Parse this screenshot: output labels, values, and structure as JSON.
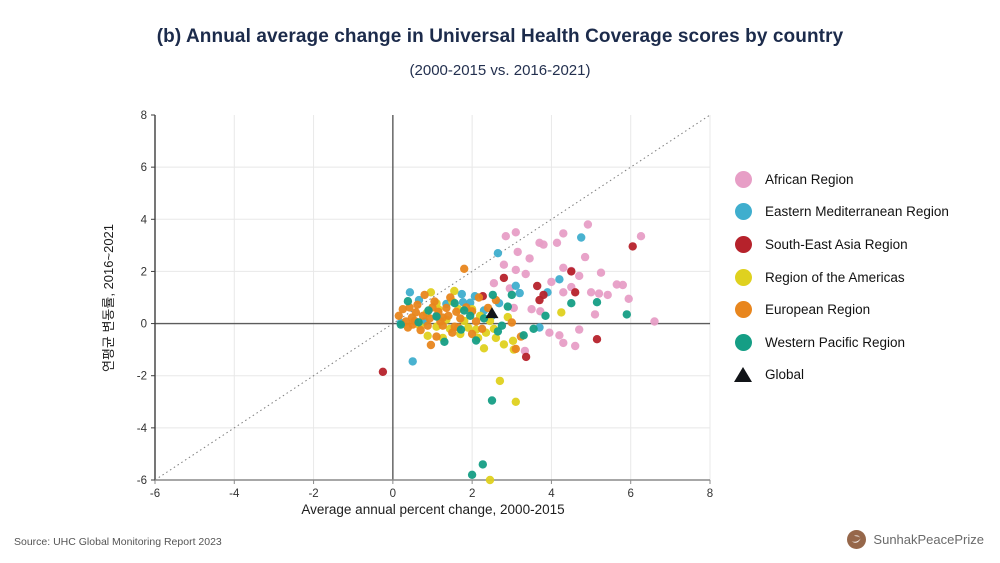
{
  "header": {
    "title": "(b) Annual average change in Universal Health Coverage scores by country",
    "subtitle": "(2000-2015 vs. 2016-2021)"
  },
  "footer": {
    "source": "Source: UHC Global Monitoring Report 2023",
    "brand": "SunhakPeacePrize",
    "brand_color": "#96674a"
  },
  "chart_data": {
    "type": "scatter",
    "title": "Annual average change in UHC scores by country",
    "xlabel": "Average annual percent change, 2000-2015",
    "ylabel": "연평균 변동률, 2016~2021",
    "xlim": [
      -6,
      8
    ],
    "ylim": [
      -6,
      8
    ],
    "ticks": [
      -6,
      -4,
      -2,
      0,
      2,
      4,
      6,
      8
    ],
    "grid": true,
    "identity_line": true,
    "legend_position": "right",
    "series": [
      {
        "name": "African Region",
        "color": "#e79ec6",
        "points": [
          [
            2.85,
            3.35
          ],
          [
            3.1,
            3.5
          ],
          [
            3.7,
            3.1
          ],
          [
            3.8,
            3.03
          ],
          [
            4.14,
            3.1
          ],
          [
            4.3,
            3.46
          ],
          [
            4.92,
            3.8
          ],
          [
            6.26,
            3.35
          ],
          [
            3.15,
            2.75
          ],
          [
            3.45,
            2.5
          ],
          [
            4.85,
            2.55
          ],
          [
            2.8,
            2.26
          ],
          [
            3.1,
            2.06
          ],
          [
            4.3,
            2.14
          ],
          [
            4.5,
            2.02
          ],
          [
            5.25,
            1.95
          ],
          [
            3.35,
            1.9
          ],
          [
            4.7,
            1.83
          ],
          [
            4.0,
            1.6
          ],
          [
            5.65,
            1.5
          ],
          [
            5.8,
            1.48
          ],
          [
            4.5,
            1.4
          ],
          [
            2.95,
            1.35
          ],
          [
            4.3,
            1.2
          ],
          [
            5.0,
            1.2
          ],
          [
            5.2,
            1.15
          ],
          [
            5.42,
            1.1
          ],
          [
            5.95,
            0.95
          ],
          [
            3.05,
            0.6
          ],
          [
            3.5,
            0.55
          ],
          [
            3.72,
            0.47
          ],
          [
            5.1,
            0.35
          ],
          [
            6.6,
            0.08
          ],
          [
            3.95,
            -0.35
          ],
          [
            4.2,
            -0.45
          ],
          [
            4.7,
            -0.23
          ],
          [
            4.3,
            -0.74
          ],
          [
            4.6,
            -0.86
          ],
          [
            3.33,
            -1.05
          ],
          [
            2.55,
            1.55
          ]
        ]
      },
      {
        "name": "Eastern Mediterranean Region",
        "color": "#3faece",
        "points": [
          [
            2.65,
            2.7
          ],
          [
            4.75,
            3.3
          ],
          [
            3.1,
            1.45
          ],
          [
            3.2,
            1.17
          ],
          [
            3.9,
            1.2
          ],
          [
            4.2,
            1.7
          ],
          [
            1.74,
            1.13
          ],
          [
            1.77,
            0.82
          ],
          [
            0.43,
            1.2
          ],
          [
            0.66,
            0.9
          ],
          [
            1.35,
            0.75
          ],
          [
            1.95,
            0.8
          ],
          [
            2.68,
            0.78
          ],
          [
            2.07,
            1.05
          ],
          [
            0.8,
            0.08
          ],
          [
            0.2,
            0.03
          ],
          [
            3.7,
            -0.15
          ],
          [
            0.5,
            -1.45
          ],
          [
            2.3,
            0.5
          ],
          [
            1.1,
            0.3
          ],
          [
            2.5,
            0.3
          ]
        ]
      },
      {
        "name": "South-East Asia Region",
        "color": "#b6222b",
        "points": [
          [
            2.8,
            1.75
          ],
          [
            2.27,
            1.05
          ],
          [
            3.64,
            1.44
          ],
          [
            3.8,
            1.1
          ],
          [
            4.5,
            2.0
          ],
          [
            6.05,
            2.96
          ],
          [
            4.6,
            1.2
          ],
          [
            3.7,
            0.9
          ],
          [
            5.15,
            -0.6
          ],
          [
            3.36,
            -1.28
          ],
          [
            -0.25,
            -1.85
          ]
        ]
      },
      {
        "name": "Region of the Americas",
        "color": "#dfd11f",
        "points": [
          [
            0.96,
            1.2
          ],
          [
            1.55,
            1.25
          ],
          [
            1.1,
            0.78
          ],
          [
            1.5,
            0.85
          ],
          [
            0.85,
            0.4
          ],
          [
            1.15,
            0.55
          ],
          [
            1.65,
            0.55
          ],
          [
            2.0,
            0.55
          ],
          [
            2.2,
            0.3
          ],
          [
            2.9,
            0.25
          ],
          [
            1.35,
            0.15
          ],
          [
            1.8,
            0.1
          ],
          [
            2.45,
            0.1
          ],
          [
            0.68,
            -0.08
          ],
          [
            1.1,
            -0.12
          ],
          [
            1.44,
            -0.2
          ],
          [
            1.9,
            -0.16
          ],
          [
            2.1,
            -0.23
          ],
          [
            2.55,
            -0.2
          ],
          [
            2.35,
            -0.35
          ],
          [
            0.88,
            -0.47
          ],
          [
            1.26,
            -0.55
          ],
          [
            1.7,
            -0.4
          ],
          [
            2.15,
            -0.55
          ],
          [
            2.6,
            -0.55
          ],
          [
            3.03,
            -0.66
          ],
          [
            2.8,
            -0.8
          ],
          [
            2.3,
            -0.95
          ],
          [
            3.05,
            -1.0
          ],
          [
            4.25,
            0.43
          ],
          [
            2.7,
            -2.2
          ],
          [
            3.1,
            -3.0
          ],
          [
            2.45,
            -6.0
          ]
        ]
      },
      {
        "name": "European Region",
        "color": "#e8861e",
        "points": [
          [
            1.8,
            2.1
          ],
          [
            2.17,
            1.0
          ],
          [
            0.8,
            1.1
          ],
          [
            1.05,
            0.85
          ],
          [
            1.45,
            1.0
          ],
          [
            0.25,
            0.55
          ],
          [
            0.42,
            0.62
          ],
          [
            0.62,
            0.72
          ],
          [
            1.0,
            0.62
          ],
          [
            1.15,
            0.45
          ],
          [
            1.35,
            0.6
          ],
          [
            1.85,
            0.62
          ],
          [
            2.4,
            0.6
          ],
          [
            2.6,
            0.9
          ],
          [
            0.15,
            0.3
          ],
          [
            0.33,
            0.08
          ],
          [
            0.48,
            0.23
          ],
          [
            0.58,
            0.43
          ],
          [
            0.76,
            0.3
          ],
          [
            0.93,
            0.2
          ],
          [
            1.26,
            0.23
          ],
          [
            1.4,
            0.3
          ],
          [
            1.6,
            0.45
          ],
          [
            1.7,
            0.2
          ],
          [
            2.0,
            0.47
          ],
          [
            2.1,
            0.08
          ],
          [
            0.55,
            0.1
          ],
          [
            1.2,
            0.08
          ],
          [
            0.5,
            -0.04
          ],
          [
            0.88,
            -0.08
          ],
          [
            1.26,
            -0.08
          ],
          [
            1.56,
            -0.12
          ],
          [
            0.38,
            -0.15
          ],
          [
            0.7,
            -0.25
          ],
          [
            1.65,
            -0.15
          ],
          [
            2.25,
            -0.2
          ],
          [
            1.1,
            -0.5
          ],
          [
            1.5,
            -0.35
          ],
          [
            2.0,
            -0.4
          ],
          [
            0.96,
            -0.82
          ],
          [
            3.0,
            0.04
          ],
          [
            3.23,
            -0.5
          ],
          [
            3.1,
            -0.97
          ]
        ]
      },
      {
        "name": "Western Pacific Region",
        "color": "#159e85",
        "points": [
          [
            0.38,
            0.86
          ],
          [
            0.9,
            0.5
          ],
          [
            1.56,
            0.78
          ],
          [
            1.8,
            0.5
          ],
          [
            2.52,
            1.1
          ],
          [
            3.0,
            1.1
          ],
          [
            2.9,
            0.65
          ],
          [
            2.3,
            0.2
          ],
          [
            1.95,
            0.3
          ],
          [
            1.1,
            0.27
          ],
          [
            0.65,
            0.05
          ],
          [
            0.2,
            -0.04
          ],
          [
            1.72,
            -0.23
          ],
          [
            2.75,
            -0.08
          ],
          [
            2.65,
            -0.3
          ],
          [
            3.3,
            -0.45
          ],
          [
            3.55,
            -0.2
          ],
          [
            3.85,
            0.3
          ],
          [
            4.5,
            0.78
          ],
          [
            5.15,
            0.82
          ],
          [
            5.9,
            0.35
          ],
          [
            1.3,
            -0.7
          ],
          [
            2.1,
            -0.65
          ],
          [
            2.5,
            -2.95
          ],
          [
            2.27,
            -5.4
          ],
          [
            2.0,
            -5.8
          ]
        ]
      }
    ],
    "global_point": {
      "label": "Global",
      "marker": "triangle",
      "color": "#111418",
      "x": 2.5,
      "y": 0.4
    }
  }
}
